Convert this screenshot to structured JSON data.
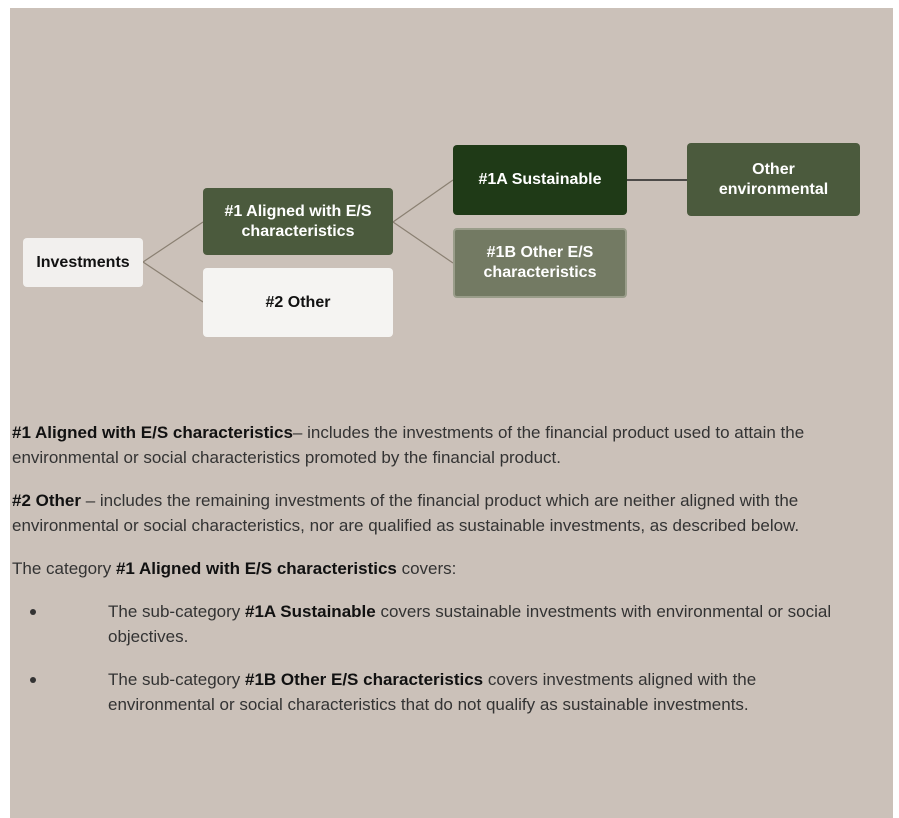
{
  "diagram": {
    "nodes": [
      {
        "id": "inv",
        "label": "Investments"
      },
      {
        "id": "n1",
        "label": "#1 Aligned with E/S characteristics"
      },
      {
        "id": "n2",
        "label": "#2 Other"
      },
      {
        "id": "n1a",
        "label": "#1A Sustainable"
      },
      {
        "id": "n1b",
        "label": "#1B Other E/S characteristics"
      },
      {
        "id": "env",
        "label": "Other environmental"
      }
    ]
  },
  "text": {
    "paragraphs": [
      [
        {
          "bold": true,
          "text": "#1 Aligned with E/S characteristics"
        },
        {
          "bold": false,
          "text": "– includes the investments of the financial product used to attain the environmental or social characteristics promoted by the financial product."
        }
      ],
      [
        {
          "bold": true,
          "text": "#2 Other"
        },
        {
          "bold": false,
          "text": " – includes the remaining investments of the financial product which are neither aligned with the environmental or social characteristics, nor are qualified as sustainable investments, as described below."
        }
      ],
      [
        {
          "bold": false,
          "text": "The category "
        },
        {
          "bold": true,
          "text": "#1 Aligned with E/S characteristics"
        },
        {
          "bold": false,
          "text": " covers:"
        }
      ]
    ],
    "bullets": [
      [
        {
          "bold": false,
          "text": "The sub-category "
        },
        {
          "bold": true,
          "text": "#1A Sustainable"
        },
        {
          "bold": false,
          "text": " covers sustainable investments with environmental or social objectives."
        }
      ],
      [
        {
          "bold": false,
          "text": "The sub-category "
        },
        {
          "bold": true,
          "text": "#1B Other E/S characteristics"
        },
        {
          "bold": false,
          "text": " covers investments aligned with the environmental or social characteristics that do not qualify as sustainable investments."
        }
      ]
    ]
  }
}
